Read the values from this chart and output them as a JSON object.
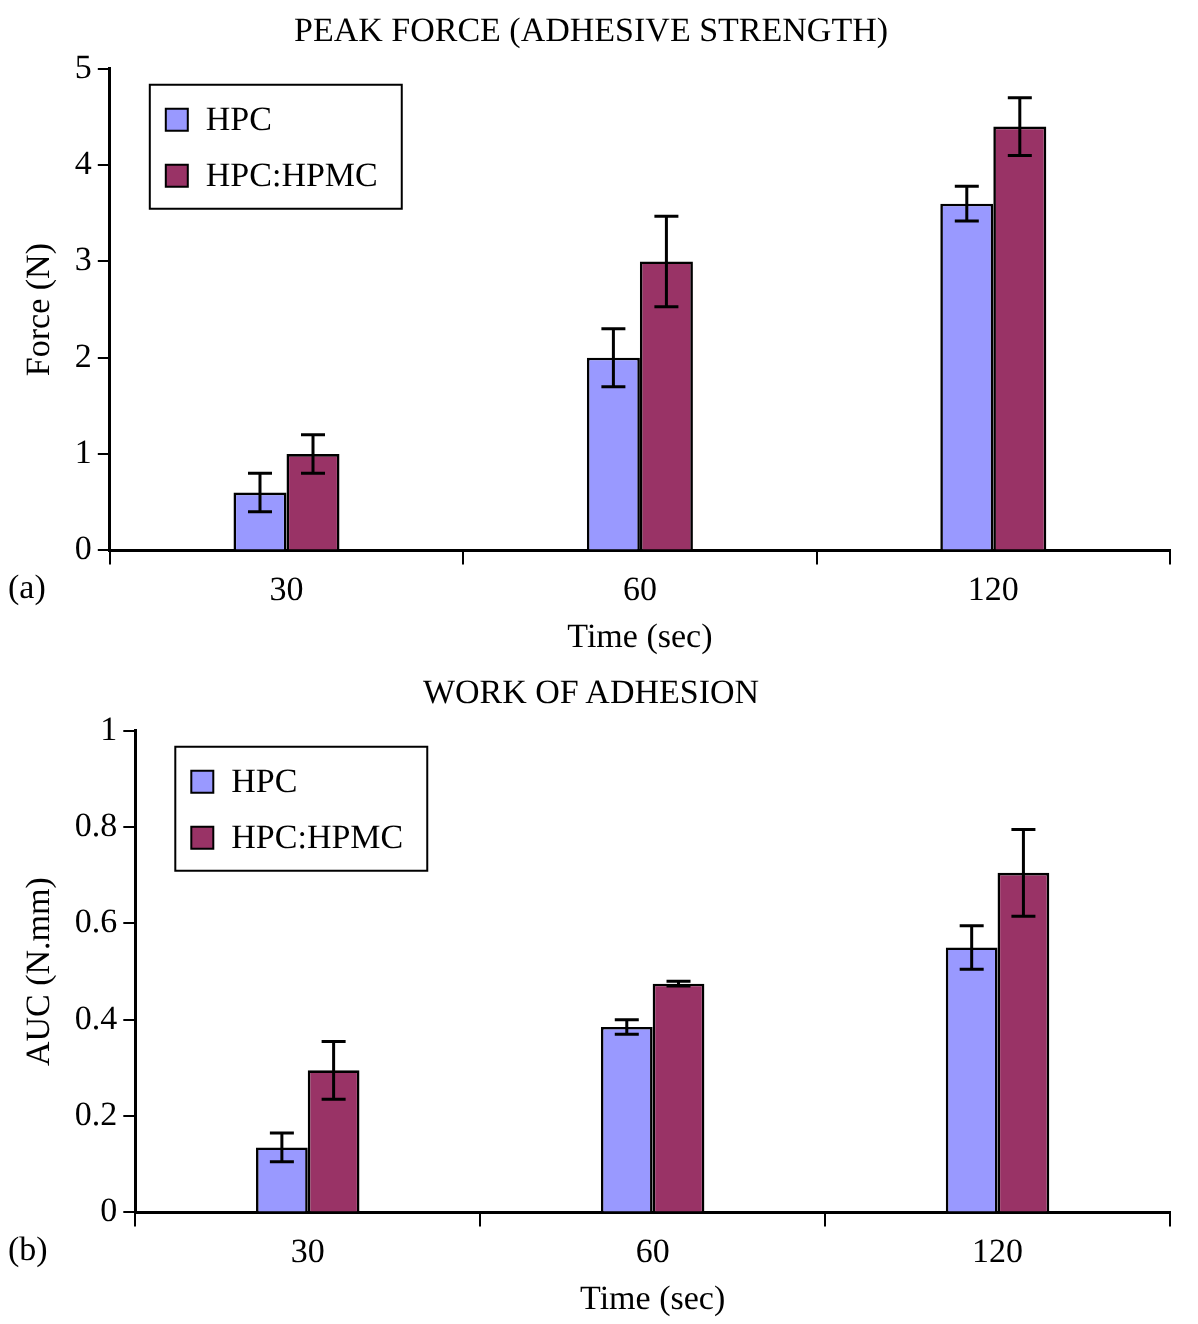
{
  "chart_data": [
    {
      "type": "bar",
      "title": "PEAK FORCE (ADHESIVE STRENGTH)",
      "xlabel": "Time (sec)",
      "ylabel": "Force (N)",
      "categories": [
        "30",
        "60",
        "120"
      ],
      "series": [
        {
          "name": "HPC",
          "color": "#9999ff",
          "values": [
            0.6,
            2.0,
            3.6
          ],
          "errors": [
            0.2,
            0.3,
            0.18
          ]
        },
        {
          "name": "HPC:HPMC",
          "color": "#993366",
          "values": [
            1.0,
            3.0,
            4.4
          ],
          "errors": [
            0.2,
            0.47,
            0.3
          ]
        }
      ],
      "ylim": [
        0,
        5
      ],
      "yticks": [
        0,
        1,
        2,
        3,
        4,
        5
      ],
      "grid": false,
      "legend": "top left",
      "annotations": [
        "(a)"
      ]
    },
    {
      "type": "bar",
      "title": "WORK OF ADHESION",
      "xlabel": "Time (sec)",
      "ylabel": "AUC (N.mm)",
      "categories": [
        "30",
        "60",
        "120"
      ],
      "series": [
        {
          "name": "HPC",
          "color": "#9999ff",
          "values": [
            0.135,
            0.385,
            0.55
          ],
          "errors": [
            0.03,
            0.015,
            0.045
          ]
        },
        {
          "name": "HPC:HPMC",
          "color": "#993366",
          "values": [
            0.295,
            0.475,
            0.705
          ],
          "errors": [
            0.06,
            0.005,
            0.09
          ]
        }
      ],
      "ylim": [
        0,
        1
      ],
      "yticks": [
        0,
        0.2,
        0.4,
        0.6,
        0.8,
        1
      ],
      "grid": false,
      "legend": "top left",
      "annotations": [
        "(b)"
      ]
    }
  ]
}
